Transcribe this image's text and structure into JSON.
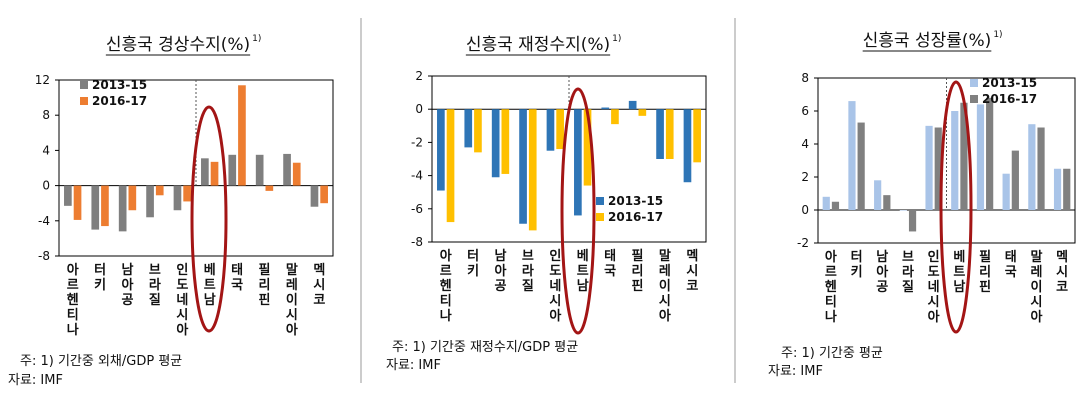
{
  "colors": {
    "gray": "#7f7f7f",
    "orange": "#ed7d31",
    "blue": "#2e75b6",
    "yellow": "#ffc000",
    "light_blue": "#a9c4e8",
    "dark_gray": "#808080",
    "ellipse": "#a31515",
    "axis": "#000000"
  },
  "panels": [
    {
      "title": "신흥국 경상수지(%)",
      "title_sup": "1)",
      "notes": [
        "주: 1) 기간중 외채/GDP 평균",
        "자료: IMF"
      ]
    },
    {
      "title": "신흥국 재정수지(%)",
      "title_sup": "1)",
      "notes": [
        "주: 1) 기간중 재정수지/GDP 평균",
        "자료: IMF"
      ]
    },
    {
      "title": "신흥국 성장률(%)",
      "title_sup": "1)",
      "notes": [
        "주: 1) 기간중 평균",
        "자료: IMF"
      ]
    }
  ],
  "chart_data": [
    {
      "type": "bar",
      "title": "신흥국 경상수지(%)",
      "categories": [
        "아르헨티나",
        "터키",
        "남아공",
        "브라질",
        "인도네시아",
        "베트남",
        "태국",
        "필리핀",
        "말레이시아",
        "멕시코"
      ],
      "series": [
        {
          "name": "2013-15",
          "color": "gray",
          "values": [
            -2.3,
            -5.0,
            -5.2,
            -3.6,
            -2.8,
            3.1,
            3.5,
            3.5,
            3.6,
            -2.4
          ]
        },
        {
          "name": "2016-17",
          "color": "orange",
          "values": [
            -3.9,
            -4.6,
            -2.8,
            -1.1,
            -1.8,
            2.7,
            11.4,
            -0.6,
            2.6,
            -2.0
          ]
        }
      ],
      "ylim": [
        -8,
        12
      ],
      "yticks": [
        "-8",
        "-4",
        "0",
        "4",
        "8",
        "12"
      ],
      "legend_position": "top-left",
      "highlight": "베트남"
    },
    {
      "type": "bar",
      "title": "신흥국 재정수지(%)",
      "categories": [
        "아르헨티나",
        "터키",
        "남아공",
        "브라질",
        "인도네시아",
        "베트남",
        "태국",
        "필리핀",
        "말레이시아",
        "멕시코"
      ],
      "series": [
        {
          "name": "2013-15",
          "color": "blue",
          "values": [
            -4.9,
            -2.3,
            -4.1,
            -6.9,
            -2.5,
            -6.4,
            0.1,
            0.5,
            -3.0,
            -4.4
          ]
        },
        {
          "name": "2016-17",
          "color": "yellow",
          "values": [
            -6.8,
            -2.6,
            -3.9,
            -7.3,
            -2.4,
            -4.6,
            -0.9,
            -0.4,
            -3.0,
            -3.2
          ]
        }
      ],
      "ylim": [
        -8,
        2
      ],
      "yticks": [
        "-8",
        "-6",
        "-4",
        "-2",
        "0",
        "2"
      ],
      "legend_position": "bottom-right",
      "highlight": "베트남"
    },
    {
      "type": "bar",
      "title": "신흥국 성장률(%)",
      "categories": [
        "아르헨티나",
        "터키",
        "남아공",
        "브라질",
        "인도네시아",
        "베트남",
        "필리핀",
        "태국",
        "말레이시아",
        "멕시코"
      ],
      "series": [
        {
          "name": "2013-15",
          "color": "light_blue",
          "values": [
            0.8,
            6.6,
            1.8,
            0.0,
            5.1,
            6.0,
            6.4,
            2.2,
            5.2,
            2.5
          ]
        },
        {
          "name": "2016-17",
          "color": "dark_gray",
          "values": [
            0.5,
            5.3,
            0.9,
            -1.3,
            5.0,
            6.5,
            6.8,
            3.6,
            5.0,
            2.5
          ]
        }
      ],
      "ylim": [
        -2,
        8
      ],
      "yticks": [
        "-2",
        "0",
        "2",
        "4",
        "6",
        "8"
      ],
      "legend_position": "top-right",
      "highlight": "베트남"
    }
  ]
}
